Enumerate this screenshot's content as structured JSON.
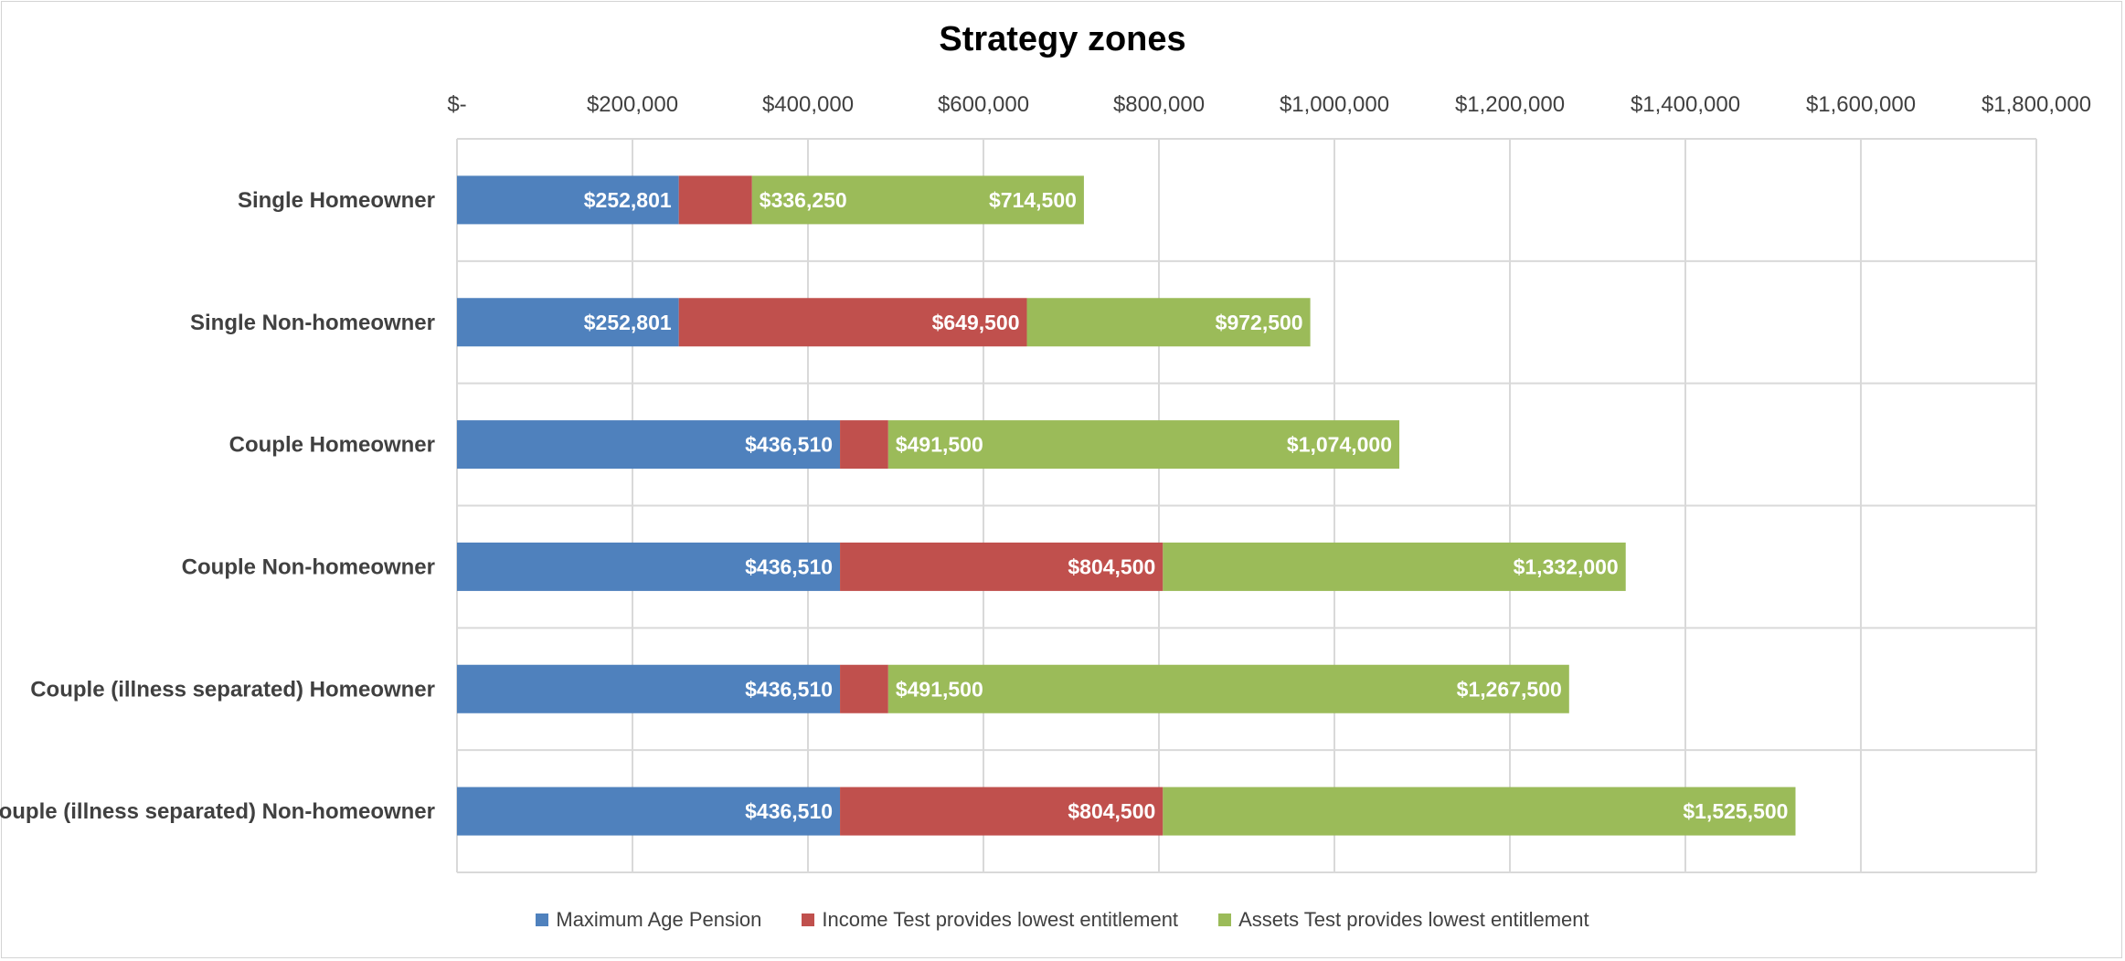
{
  "chart_data": {
    "type": "bar",
    "orientation": "horizontal",
    "stacked": true,
    "title": "Strategy zones",
    "xlim": [
      0,
      1800000
    ],
    "x_ticks": [
      0,
      200000,
      400000,
      600000,
      800000,
      1000000,
      1200000,
      1400000,
      1600000,
      1800000
    ],
    "x_tick_labels": [
      "$-",
      "$200,000",
      "$400,000",
      "$600,000",
      "$800,000",
      "$1,000,000",
      "$1,200,000",
      "$1,400,000",
      "$1,600,000",
      "$1,800,000"
    ],
    "x_axis_position": "top",
    "grid": true,
    "legend_position": "bottom",
    "categories": [
      "Single Homeowner",
      "Single Non-homeowner",
      "Couple Homeowner",
      "Couple Non-homeowner",
      "Couple (illness separated) Homeowner",
      "Couple (illness separated) Non-homeowner"
    ],
    "thresholds": [
      [
        252801,
        336250,
        714500
      ],
      [
        252801,
        649500,
        972500
      ],
      [
        436510,
        491500,
        1074000
      ],
      [
        436510,
        804500,
        1332000
      ],
      [
        436510,
        491500,
        1267500
      ],
      [
        436510,
        804500,
        1525500
      ]
    ],
    "series": [
      {
        "name": "Maximum Age Pension",
        "color": "#4f81bd",
        "values": [
          252801,
          252801,
          436510,
          436510,
          436510,
          436510
        ],
        "labels": [
          "$252,801",
          "$252,801",
          "$436,510",
          "$436,510",
          "$436,510",
          "$436,510"
        ]
      },
      {
        "name": "Income Test provides lowest entitlement",
        "color": "#c0504d",
        "values": [
          83449,
          396699,
          54990,
          367990,
          54990,
          367990
        ],
        "labels": [
          "",
          "$649,500",
          "",
          "$804,500",
          "",
          "$804,500"
        ]
      },
      {
        "name": "Assets Test provides lowest entitlement",
        "color": "#9bbb59",
        "values": [
          378250,
          323000,
          582500,
          527500,
          776000,
          721000
        ],
        "labels": [
          "$714,500",
          "$972,500",
          "$1,074,000",
          "$1,332,000",
          "$1,267,500",
          "$1,525,500"
        ]
      }
    ],
    "green_start_labels": [
      "$336,250",
      "",
      "$491,500",
      "",
      "$491,500",
      ""
    ]
  }
}
